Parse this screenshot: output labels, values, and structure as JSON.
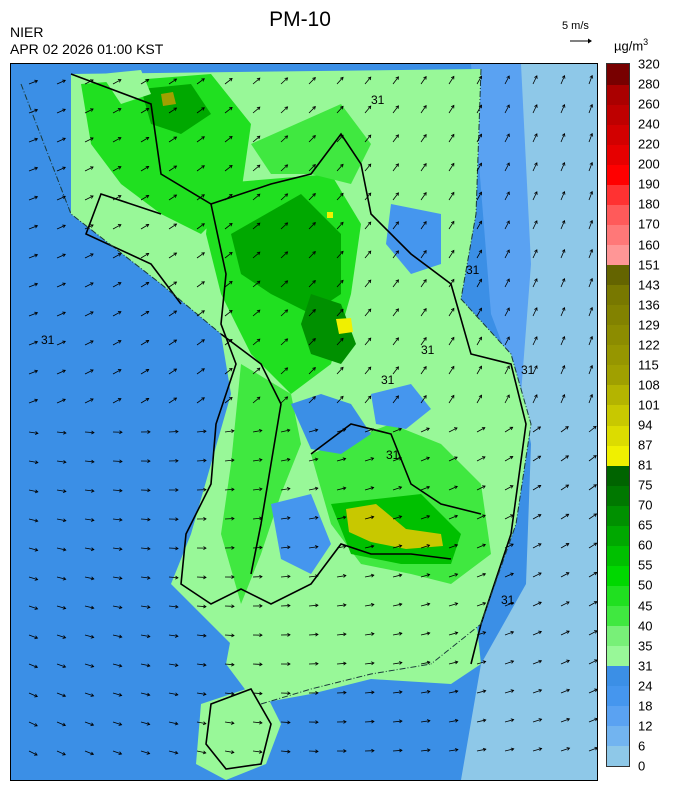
{
  "header": {
    "title": "PM-10",
    "organization": "NIER",
    "timestamp": "APR 02 2026 01:00 KST"
  },
  "wind_reference": {
    "label": "5 m/s"
  },
  "unit": {
    "base": "µg/m",
    "exponent": "3"
  },
  "legend": {
    "boundaries": [
      "0",
      "6",
      "12",
      "18",
      "24",
      "31",
      "35",
      "40",
      "45",
      "50",
      "55",
      "60",
      "65",
      "70",
      "75",
      "81",
      "87",
      "94",
      "101",
      "108",
      "115",
      "122",
      "129",
      "136",
      "143",
      "151",
      "160",
      "170",
      "180",
      "190",
      "200",
      "220",
      "240",
      "260",
      "280",
      "320"
    ],
    "colors": [
      "#8ec8e8",
      "#72b4f0",
      "#5aa2f2",
      "#4596ee",
      "#3b8fe6",
      "#98f898",
      "#78f078",
      "#40e840",
      "#20e020",
      "#00d800",
      "#00c000",
      "#00a800",
      "#009000",
      "#007800",
      "#006400",
      "#f0f000",
      "#dcdc00",
      "#c8c800",
      "#b4b400",
      "#a0a000",
      "#969600",
      "#8c8c00",
      "#828200",
      "#787800",
      "#646400",
      "#ff9696",
      "#ff7878",
      "#ff5a5a",
      "#ff3232",
      "#ff0000",
      "#e60000",
      "#d20000",
      "#be0000",
      "#aa0000",
      "#780000"
    ]
  },
  "map": {
    "contour_labels": [
      "31",
      "31",
      "31",
      "31",
      "31",
      "31",
      "31",
      "31"
    ]
  }
}
